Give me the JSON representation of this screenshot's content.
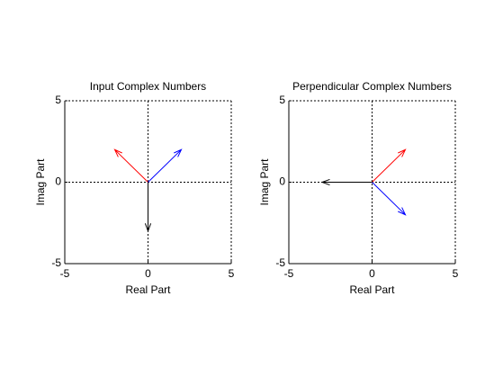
{
  "chart_data": [
    {
      "type": "vector",
      "title": "Input Complex Numbers",
      "xlabel": "Real Part",
      "ylabel": "Imag Part",
      "xlim": [
        -5,
        5
      ],
      "ylim": [
        -5,
        5
      ],
      "xticks": [
        -5,
        0,
        5
      ],
      "yticks": [
        -5,
        0,
        5
      ],
      "grid": true,
      "series": [
        {
          "color": "#ff0000",
          "u": [
            -2
          ],
          "v": [
            2
          ]
        },
        {
          "color": "#0000ff",
          "u": [
            2
          ],
          "v": [
            2
          ]
        },
        {
          "color": "#000000",
          "u": [
            0
          ],
          "v": [
            -3
          ]
        }
      ]
    },
    {
      "type": "vector",
      "title": "Perpendicular Complex Numbers",
      "xlabel": "Real Part",
      "ylabel": "Imag Part",
      "xlim": [
        -5,
        5
      ],
      "ylim": [
        -5,
        5
      ],
      "xticks": [
        -5,
        0,
        5
      ],
      "yticks": [
        -5,
        0,
        5
      ],
      "grid": true,
      "series": [
        {
          "color": "#ff0000",
          "u": [
            2
          ],
          "v": [
            2
          ]
        },
        {
          "color": "#0000ff",
          "u": [
            2
          ],
          "v": [
            -2
          ]
        },
        {
          "color": "#000000",
          "u": [
            -3
          ],
          "v": [
            0
          ]
        }
      ]
    }
  ]
}
